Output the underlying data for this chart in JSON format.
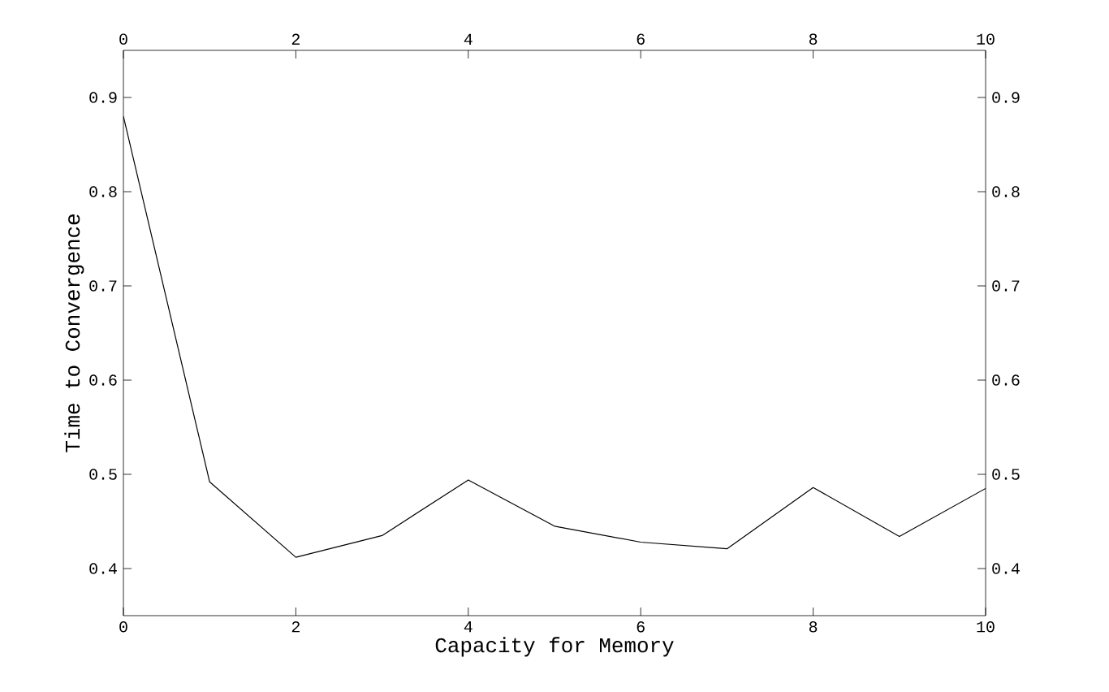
{
  "chart_data": {
    "type": "line",
    "xlabel": "Capacity for Memory",
    "ylabel": "Time to Convergence",
    "x": [
      0,
      1,
      2,
      3,
      4,
      5,
      6,
      7,
      8,
      9,
      10
    ],
    "values": [
      0.88,
      0.492,
      0.412,
      0.435,
      0.494,
      0.445,
      0.428,
      0.421,
      0.486,
      0.434,
      0.485
    ],
    "color": "#000000",
    "xlim": [
      0,
      10
    ],
    "xticks": [
      0,
      2,
      4,
      6,
      8,
      10
    ],
    "ylim": [
      0.35,
      0.95
    ],
    "yticks": [
      0.4,
      0.5,
      0.6,
      0.7,
      0.8,
      0.9
    ],
    "x2lim": [
      0,
      10
    ],
    "x2ticks": [
      0,
      2,
      4,
      6,
      8,
      10
    ],
    "y2lim": [
      0.35,
      0.95
    ],
    "y2ticks": [
      0.4,
      0.5,
      0.6,
      0.7,
      0.8,
      0.9
    ]
  }
}
